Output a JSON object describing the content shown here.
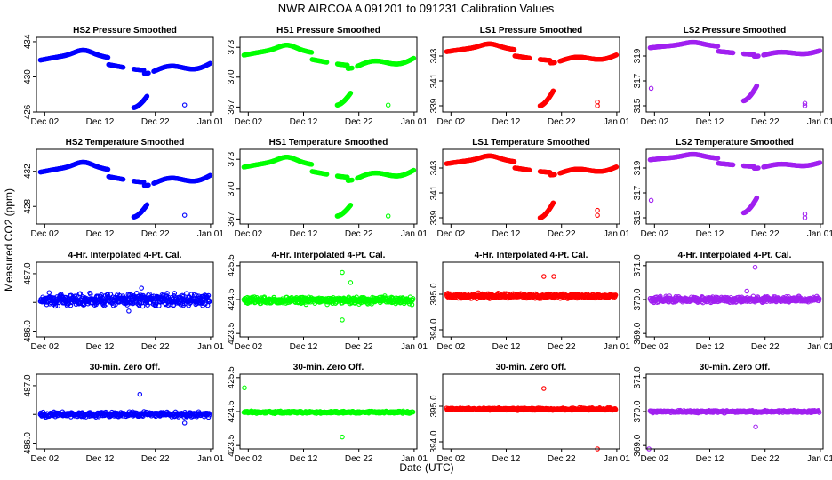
{
  "title": "NWR   AIRCOA A    091201 to 091231   Calibration Values",
  "xlabel": "Date (UTC)",
  "ylabel": "Measured CO2 (ppm)",
  "x_tick_labels": [
    "Dec 02",
    "Dec 12",
    "Dec 22",
    "Jan 01"
  ],
  "x_tick_days": [
    2,
    12,
    22,
    32
  ],
  "xlim": [
    0.5,
    32.5
  ],
  "colors": {
    "HS2": "#0000ff",
    "HS1": "#00ff00",
    "LS1": "#ff0000",
    "LS2": "#a020f0"
  },
  "chart_data": [
    {
      "type": "scatter",
      "row": 0,
      "col": 0,
      "title": "HS2 Pressure Smoothed",
      "tank": "HS2",
      "pattern": "smooth",
      "ylim": [
        426,
        434.5
      ],
      "yticks": [
        426,
        430,
        434
      ],
      "baseline": 432.0,
      "amp": 0.9,
      "drop": -0.8,
      "low": 426.5,
      "low_end": 427.8,
      "iso": [
        [
          27.3,
          426.8
        ]
      ]
    },
    {
      "type": "scatter",
      "row": 0,
      "col": 1,
      "title": "HS1 Pressure Smoothed",
      "tank": "HS1",
      "pattern": "smooth",
      "ylim": [
        366.5,
        374
      ],
      "yticks": [
        367,
        370,
        373
      ],
      "baseline": 372.3,
      "amp": 0.8,
      "drop": -0.7,
      "low": 367.2,
      "low_end": 368.4,
      "iso": [
        [
          27.3,
          367.2
        ]
      ]
    },
    {
      "type": "scatter",
      "row": 0,
      "col": 2,
      "title": "LS1 Pressure Smoothed",
      "tank": "LS1",
      "pattern": "smooth",
      "ylim": [
        338.5,
        344.5
      ],
      "yticks": [
        339,
        341,
        343
      ],
      "baseline": 343.4,
      "amp": 0.5,
      "drop": -0.5,
      "low": 339.0,
      "low_end": 340.2,
      "iso": [
        [
          28.5,
          339.3
        ],
        [
          28.5,
          339.0
        ]
      ]
    },
    {
      "type": "scatter",
      "row": 0,
      "col": 3,
      "title": "LS2 Pressure Smoothed",
      "tank": "LS2",
      "pattern": "smooth",
      "ylim": [
        314.5,
        320.5
      ],
      "yticks": [
        315,
        317,
        319
      ],
      "baseline": 319.7,
      "amp": 0.35,
      "drop": -0.4,
      "low": 315.4,
      "low_end": 316.6,
      "iso": [
        [
          1.4,
          316.4
        ],
        [
          29.2,
          315.2
        ],
        [
          29.2,
          315.0
        ]
      ]
    },
    {
      "type": "scatter",
      "row": 1,
      "col": 0,
      "title": "HS2 Temperature Smoothed",
      "tank": "HS2",
      "pattern": "smooth",
      "ylim": [
        426,
        434.5
      ],
      "yticks": [
        428,
        432
      ],
      "baseline": 432.0,
      "amp": 0.9,
      "drop": -0.8,
      "low": 426.8,
      "low_end": 428.2,
      "iso": [
        [
          27.3,
          427.0
        ]
      ]
    },
    {
      "type": "scatter",
      "row": 1,
      "col": 1,
      "title": "HS1 Temperature Smoothed",
      "tank": "HS1",
      "pattern": "smooth",
      "ylim": [
        366.5,
        374
      ],
      "yticks": [
        367,
        370,
        373
      ],
      "baseline": 372.3,
      "amp": 0.8,
      "drop": -0.7,
      "low": 367.3,
      "low_end": 368.4,
      "iso": [
        [
          27.3,
          367.3
        ]
      ]
    },
    {
      "type": "scatter",
      "row": 1,
      "col": 2,
      "title": "LS1 Temperature Smoothed",
      "tank": "LS1",
      "pattern": "smooth",
      "ylim": [
        338.5,
        344.5
      ],
      "yticks": [
        339,
        341,
        343
      ],
      "baseline": 343.4,
      "amp": 0.5,
      "drop": -0.5,
      "low": 339.0,
      "low_end": 340.2,
      "iso": [
        [
          28.5,
          339.6
        ],
        [
          28.5,
          339.2
        ]
      ]
    },
    {
      "type": "scatter",
      "row": 1,
      "col": 3,
      "title": "LS2 Temperature Smoothed",
      "tank": "LS2",
      "pattern": "smooth",
      "ylim": [
        314.5,
        320.5
      ],
      "yticks": [
        315,
        317,
        319
      ],
      "baseline": 319.7,
      "amp": 0.35,
      "drop": -0.4,
      "low": 315.4,
      "low_end": 316.6,
      "iso": [
        [
          1.4,
          316.4
        ],
        [
          29.2,
          315.3
        ],
        [
          29.2,
          315.0
        ]
      ]
    },
    {
      "type": "scatter",
      "row": 2,
      "col": 0,
      "title": "4-Hr. Interpolated 4-Pt. Cal.",
      "tank": "HS2",
      "pattern": "noisy",
      "ylim": [
        485.9,
        487.2
      ],
      "yticks": [
        486.0,
        486.5,
        487.0
      ],
      "ytick_labels": [
        "486.0",
        "",
        "487.0"
      ],
      "center": 486.55,
      "noise": 0.06,
      "iso": [
        [
          19.5,
          486.75
        ],
        [
          17.2,
          486.35
        ]
      ]
    },
    {
      "type": "scatter",
      "row": 2,
      "col": 1,
      "title": "4-Hr. Interpolated 4-Pt. Cal.",
      "tank": "HS1",
      "pattern": "noisy",
      "ylim": [
        423.4,
        425.6
      ],
      "yticks": [
        423.5,
        424.5,
        425.5
      ],
      "center": 424.48,
      "noise": 0.06,
      "iso": [
        [
          19.0,
          425.3
        ],
        [
          20.5,
          425.0
        ],
        [
          19.0,
          423.9
        ],
        [
          29.5,
          424.55
        ]
      ]
    },
    {
      "type": "scatter",
      "row": 2,
      "col": 2,
      "title": "4-Hr. Interpolated 4-Pt. Cal.",
      "tank": "LS1",
      "pattern": "noisy",
      "ylim": [
        393.8,
        395.9
      ],
      "yticks": [
        394.0,
        395.0
      ],
      "center": 394.95,
      "noise": 0.04,
      "iso": [
        [
          18.8,
          395.5
        ],
        [
          20.6,
          395.5
        ]
      ]
    },
    {
      "type": "scatter",
      "row": 2,
      "col": 3,
      "title": "4-Hr. Interpolated 4-Pt. Cal.",
      "tank": "LS2",
      "pattern": "noisy",
      "ylim": [
        368.9,
        371.1
      ],
      "yticks": [
        369.0,
        370.0,
        371.0
      ],
      "center": 370.0,
      "noise": 0.05,
      "iso": [
        [
          20.2,
          370.95
        ],
        [
          18.7,
          370.25
        ]
      ]
    },
    {
      "type": "scatter",
      "row": 3,
      "col": 0,
      "title": "30-min. Zero Off.",
      "tank": "HS2",
      "pattern": "flat",
      "ylim": [
        485.9,
        487.2
      ],
      "yticks": [
        486.0,
        486.5,
        487.0
      ],
      "ytick_labels": [
        "486.0",
        "",
        "487.0"
      ],
      "center": 486.5,
      "noise": 0.025,
      "iso": [
        [
          19.2,
          486.85
        ],
        [
          27.3,
          486.35
        ]
      ]
    },
    {
      "type": "scatter",
      "row": 3,
      "col": 1,
      "title": "30-min. Zero Off.",
      "tank": "HS1",
      "pattern": "flat",
      "ylim": [
        423.4,
        425.6
      ],
      "yticks": [
        423.5,
        424.5,
        425.5
      ],
      "center": 424.48,
      "noise": 0.02,
      "iso": [
        [
          1.3,
          425.2
        ],
        [
          19.0,
          423.75
        ]
      ]
    },
    {
      "type": "scatter",
      "row": 3,
      "col": 2,
      "title": "30-min. Zero Off.",
      "tank": "LS1",
      "pattern": "flat",
      "ylim": [
        393.8,
        395.9
      ],
      "yticks": [
        394.0,
        395.0
      ],
      "center": 394.92,
      "noise": 0.02,
      "iso": [
        [
          18.8,
          395.5
        ],
        [
          28.5,
          393.8
        ]
      ]
    },
    {
      "type": "scatter",
      "row": 3,
      "col": 3,
      "title": "30-min. Zero Off.",
      "tank": "LS2",
      "pattern": "flat",
      "ylim": [
        368.9,
        371.1
      ],
      "yticks": [
        369.0,
        370.0,
        371.0
      ],
      "center": 370.0,
      "noise": 0.02,
      "iso": [
        [
          20.3,
          369.55
        ],
        [
          1.0,
          368.9
        ]
      ]
    }
  ]
}
